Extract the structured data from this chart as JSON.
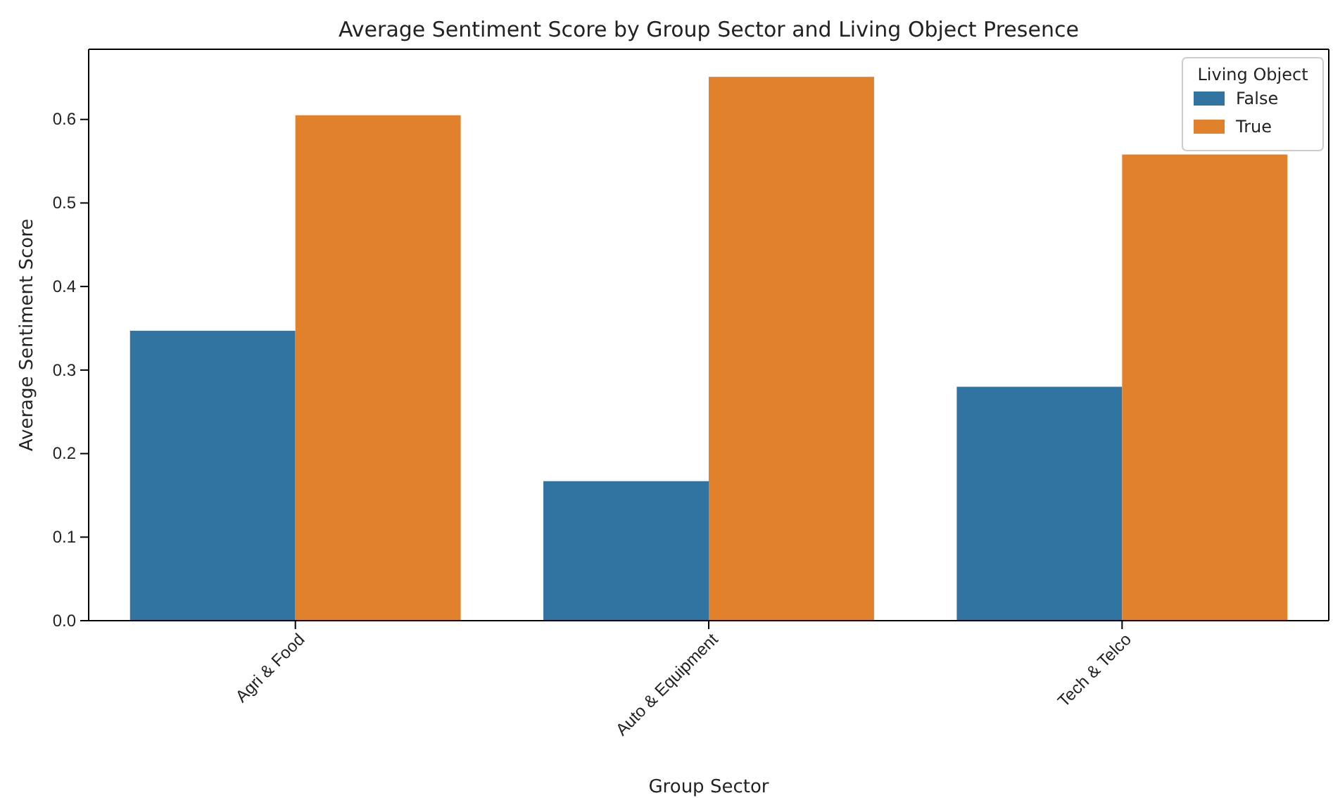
{
  "chart_data": {
    "type": "bar",
    "title": "Average Sentiment Score by Group Sector and Living Object Presence",
    "xlabel": "Group Sector",
    "ylabel": "Average Sentiment Score",
    "legend_title": "Living Object",
    "categories": [
      "Agri & Food",
      "Auto & Equipment",
      "Tech & Telco"
    ],
    "series": [
      {
        "name": "False",
        "color": "#3274a1",
        "values": [
          0.347,
          0.167,
          0.28
        ]
      },
      {
        "name": "True",
        "color": "#e1812c",
        "values": [
          0.605,
          0.651,
          0.558
        ]
      }
    ],
    "ylim": [
      0,
      0.684
    ],
    "yticks": [
      {
        "value": 0,
        "label": "0.0"
      },
      0.1,
      0.2,
      0.3,
      0.4,
      0.5,
      0.6
    ],
    "legend": "top right",
    "grid": false
  }
}
